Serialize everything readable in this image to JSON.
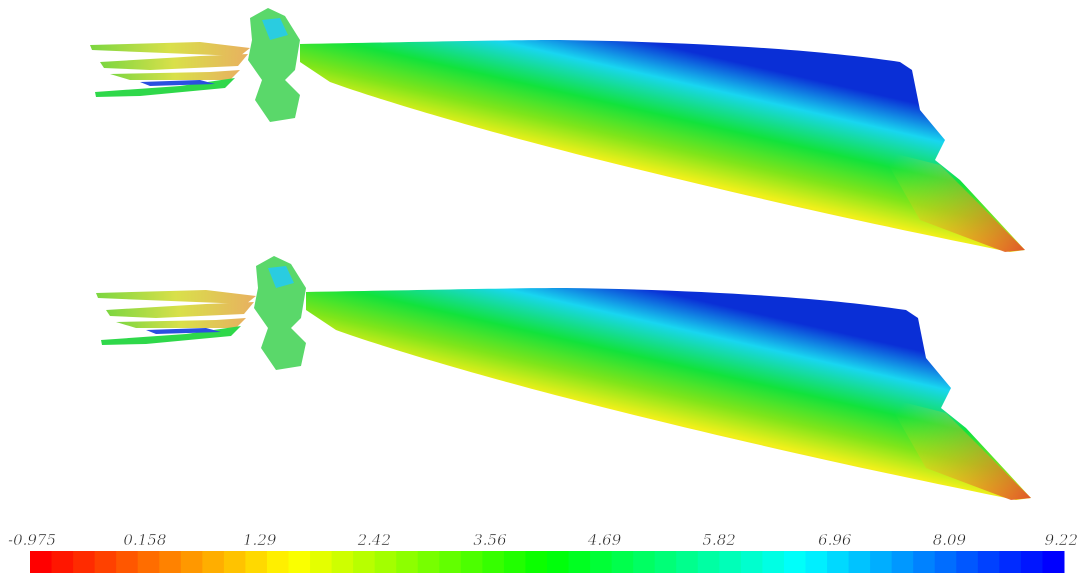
{
  "colorbar": {
    "ticks": [
      -0.975,
      0.158,
      1.29,
      2.42,
      3.56,
      4.69,
      5.82,
      6.96,
      8.09,
      9.22
    ]
  }
}
